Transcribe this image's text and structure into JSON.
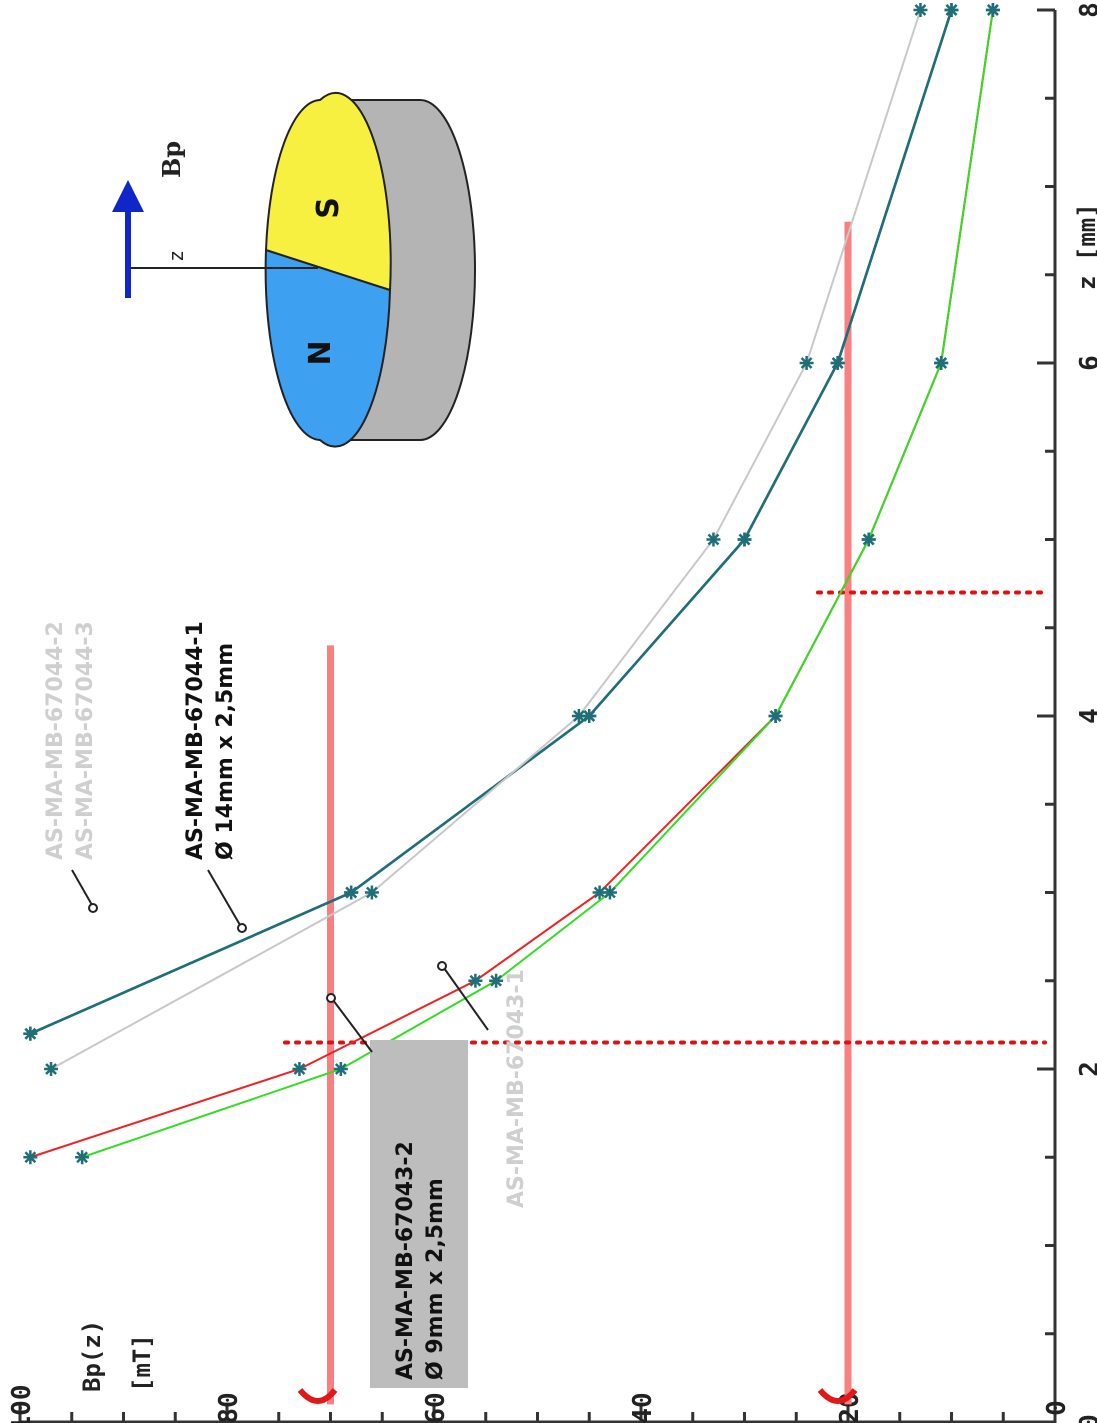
{
  "chart_data": {
    "type": "line",
    "xlabel": "z [mm]",
    "ylabel": "Bp(z) [mT]",
    "xlim": [
      0,
      8
    ],
    "ylim": [
      0,
      100
    ],
    "x_ticks": [
      "0",
      "2",
      "4",
      "6",
      "8"
    ],
    "y_ticks": [
      "0",
      "20",
      "40",
      "60",
      "80",
      "100"
    ],
    "series": [
      {
        "name": "AS-MA-MB-67044-1 Ø 14mm x 2,5mm",
        "color": "#1f6e78",
        "x": [
          2.2,
          3.0,
          4.0,
          5.0,
          6.0,
          8.0
        ],
        "y": [
          99,
          68,
          45,
          30,
          21,
          10
        ]
      },
      {
        "name": "AS-MA-MB-67044-2",
        "color": "#1f6e78",
        "x": [
          2.2,
          3.0,
          4.0,
          5.0,
          6.0,
          8.0
        ],
        "y": [
          99,
          68,
          45,
          30,
          21,
          10
        ]
      },
      {
        "name": "AS-MA-MB-67044-3",
        "color": "#c8c8c8",
        "x": [
          2.0,
          3.0,
          4.0,
          5.0,
          6.0,
          8.0
        ],
        "y": [
          97,
          66,
          46,
          33,
          24,
          13
        ]
      },
      {
        "name": "AS-MA-MB-67043-2 Ø 9mm x 2,5mm",
        "color": "#ee2222",
        "x": [
          1.5,
          2.0,
          2.5,
          3.0,
          4.0,
          5.0,
          6.0,
          8.0
        ],
        "y": [
          99,
          73,
          56,
          44,
          27,
          18,
          11,
          6
        ]
      },
      {
        "name": "AS-MA-MB-67043-1",
        "color": "#33dd22",
        "x": [
          1.5,
          2.0,
          2.5,
          3.0,
          4.0,
          5.0,
          6.0,
          8.0
        ],
        "y": [
          94,
          69,
          54,
          43,
          27,
          18,
          11,
          6
        ]
      }
    ],
    "reference_lines": [
      {
        "orientation": "horizontal",
        "y": 70,
        "style": "solid",
        "color": "#f88080"
      },
      {
        "orientation": "horizontal",
        "y": 20,
        "style": "solid",
        "color": "#f88080"
      },
      {
        "orientation": "vertical",
        "x": 2.15,
        "style": "dotted",
        "color": "#dd1111"
      },
      {
        "orientation": "vertical",
        "x": 4.7,
        "style": "dotted",
        "color": "#dd1111"
      }
    ],
    "grid": false
  },
  "labels": {
    "series_67044_1_line1": "AS-MA-MB-67044-1",
    "series_67044_1_line2": "Ø 14mm x 2,5mm",
    "series_67044_2": "AS-MA-MB-67044-2",
    "series_67044_3": "AS-MA-MB-67044-3",
    "series_67043_2_line1": "AS-MA-MB-67043-2",
    "series_67043_2_line2": "Ø 9mm x 2,5mm",
    "series_67043_1": "AS-MA-MB-67043-1",
    "axis_y_line1": "Bp(z)",
    "axis_y_line2": "[mT]",
    "axis_x": "z [mm]"
  },
  "magnet_diagram": {
    "north_label": "N",
    "south_label": "S",
    "field_label": "Bp",
    "distance_label": "z",
    "north_color": "#3ea0f0",
    "south_color": "#f8f040",
    "body_color": "#b4b4b4",
    "arrow_color": "#1026c8"
  }
}
